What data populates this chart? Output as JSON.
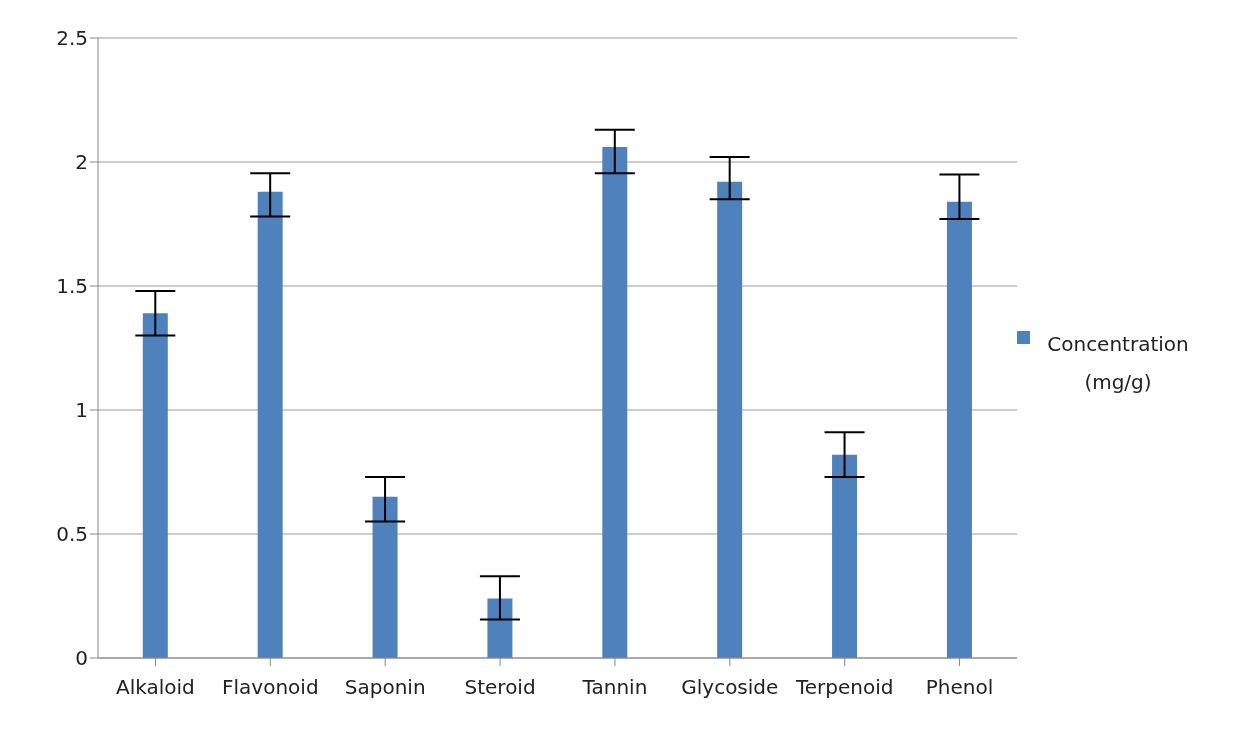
{
  "chart_data": {
    "type": "bar",
    "categories": [
      "Alkaloid",
      "Flavonoid",
      "Saponin",
      "Steroid",
      "Tannin",
      "Glycoside",
      "Terpenoid",
      "Phenol"
    ],
    "series": [
      {
        "name": "Concentration (mg/g)",
        "color": "#4f81bd",
        "values": [
          1.39,
          1.88,
          0.65,
          0.24,
          2.06,
          1.92,
          0.82,
          1.84
        ],
        "errors": [
          [
            1.3,
            1.48
          ],
          [
            1.78,
            1.955
          ],
          [
            0.55,
            0.73
          ],
          [
            0.155,
            0.33
          ],
          [
            1.955,
            2.13
          ],
          [
            1.85,
            2.02
          ],
          [
            0.73,
            0.91
          ],
          [
            1.77,
            1.95
          ]
        ]
      }
    ],
    "ylim": [
      0,
      2.5
    ],
    "yticks": [
      0,
      0.5,
      1,
      1.5,
      2,
      2.5
    ],
    "grid": "y",
    "legend": "right"
  }
}
